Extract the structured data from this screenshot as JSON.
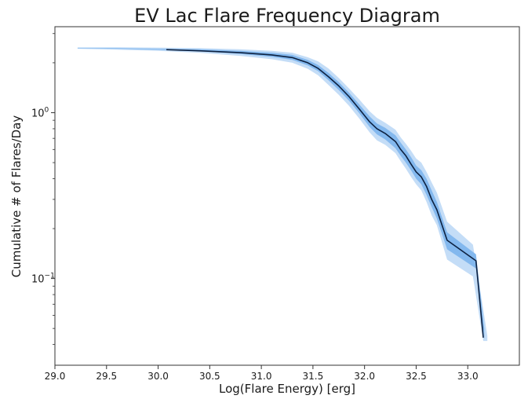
{
  "chart_data": {
    "type": "line",
    "title": "EV Lac Flare Frequency Diagram",
    "xlabel": "Log(Flare Energy) [erg]",
    "ylabel": "Cumulative # of Flares/Day",
    "xlim": [
      29.0,
      33.5
    ],
    "ylim": [
      0.03,
      3.3
    ],
    "yscale": "log",
    "grid": false,
    "xticks": [
      "29.0",
      "29.5",
      "30.0",
      "30.5",
      "31.0",
      "31.5",
      "32.0",
      "32.5",
      "33.0"
    ],
    "xtick_values": [
      29.0,
      29.5,
      30.0,
      30.5,
      31.0,
      31.5,
      32.0,
      32.5,
      33.0
    ],
    "yticks": [
      {
        "value": 1.0,
        "base": "10",
        "exponent": "0"
      },
      {
        "value": 0.1,
        "base": "10",
        "exponent": "−1"
      }
    ],
    "colors": {
      "line": "#0d2140",
      "band_outer": "#c4ddf7",
      "band_inner": "#83b8ee",
      "axis": "#333333"
    },
    "series": [
      {
        "x": [
          30.08,
          30.4,
          30.8,
          31.1,
          31.3,
          31.45,
          31.55,
          31.65,
          31.75,
          31.85,
          31.95,
          32.05,
          32.12,
          32.2,
          32.3,
          32.35,
          32.4,
          32.45,
          32.5,
          32.55,
          32.6,
          32.65,
          32.7,
          32.8,
          33.08,
          33.15
        ],
        "y": [
          2.4,
          2.36,
          2.3,
          2.23,
          2.15,
          2.0,
          1.85,
          1.65,
          1.45,
          1.25,
          1.05,
          0.88,
          0.8,
          0.75,
          0.67,
          0.6,
          0.55,
          0.49,
          0.44,
          0.41,
          0.36,
          0.3,
          0.26,
          0.17,
          0.128,
          0.044
        ]
      }
    ],
    "band_outer": {
      "x": [
        29.22,
        29.6,
        30.0,
        30.4,
        30.8,
        31.1,
        31.3,
        31.45,
        31.55,
        31.65,
        31.75,
        31.85,
        31.95,
        32.05,
        32.12,
        32.2,
        32.3,
        32.35,
        32.4,
        32.45,
        32.5,
        32.55,
        32.6,
        32.65,
        32.7,
        32.8,
        33.05,
        33.15,
        33.19
      ],
      "upper": [
        2.48,
        2.48,
        2.47,
        2.45,
        2.41,
        2.36,
        2.3,
        2.16,
        2.04,
        1.85,
        1.62,
        1.4,
        1.2,
        1.02,
        0.93,
        0.87,
        0.79,
        0.71,
        0.65,
        0.59,
        0.53,
        0.5,
        0.44,
        0.38,
        0.33,
        0.22,
        0.16,
        0.065,
        0.045
      ],
      "lower": [
        2.43,
        2.4,
        2.36,
        2.3,
        2.2,
        2.1,
        2.0,
        1.84,
        1.68,
        1.47,
        1.28,
        1.1,
        0.92,
        0.76,
        0.68,
        0.64,
        0.57,
        0.51,
        0.46,
        0.41,
        0.37,
        0.34,
        0.29,
        0.24,
        0.21,
        0.13,
        0.103,
        0.042,
        0.042
      ]
    },
    "band_inner": {
      "x": [
        29.22,
        29.6,
        30.0,
        30.4,
        30.8,
        31.1,
        31.3,
        31.45,
        31.55,
        31.65,
        31.75,
        31.85,
        31.95,
        32.05,
        32.12,
        32.2,
        32.3,
        32.35,
        32.4,
        32.45,
        32.5,
        32.55,
        32.6,
        32.65,
        32.7,
        32.8,
        33.08,
        33.16
      ],
      "upper": [
        2.45,
        2.45,
        2.43,
        2.41,
        2.36,
        2.3,
        2.23,
        2.08,
        1.94,
        1.74,
        1.53,
        1.32,
        1.12,
        0.95,
        0.86,
        0.81,
        0.73,
        0.66,
        0.6,
        0.54,
        0.48,
        0.45,
        0.4,
        0.34,
        0.29,
        0.19,
        0.14,
        0.05
      ],
      "lower": [
        2.44,
        2.43,
        2.4,
        2.35,
        2.26,
        2.17,
        2.08,
        1.93,
        1.78,
        1.57,
        1.37,
        1.18,
        0.99,
        0.82,
        0.74,
        0.69,
        0.61,
        0.55,
        0.5,
        0.45,
        0.4,
        0.37,
        0.32,
        0.27,
        0.23,
        0.15,
        0.115,
        0.043
      ]
    }
  }
}
